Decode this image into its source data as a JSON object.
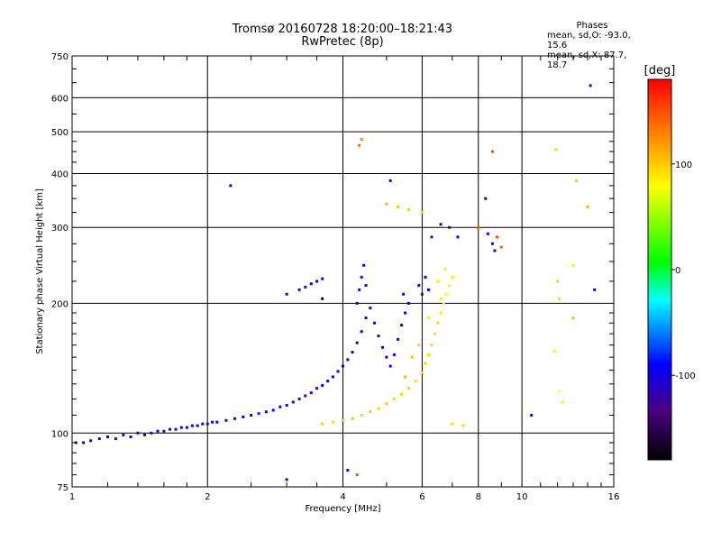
{
  "chart_data": {
    "type": "scatter",
    "title": "Tromsø 20160728 18:20:00–18:21:43",
    "subtitle": "RwPretec (8p)",
    "xlabel": "Frequency [MHz]",
    "ylabel": "Stationary phase Virtual Height [km]",
    "x_scale": "log",
    "y_scale": "log",
    "xlim": [
      1,
      16
    ],
    "ylim": [
      75,
      750
    ],
    "x_ticks": [
      1,
      2,
      4,
      6,
      8,
      10,
      16
    ],
    "y_ticks": [
      75,
      100,
      200,
      300,
      400,
      500,
      600,
      750
    ],
    "grid": true,
    "legend": {
      "title": "Phases",
      "lines": [
        "mean, sd,O: -93.0, 15.6",
        "mean, sd,X: 87.7, 18.7"
      ],
      "placement": "top-right"
    },
    "colorbar": {
      "label": "[deg]",
      "range": [
        -180,
        180
      ],
      "ticks": [
        100,
        0,
        -100
      ]
    },
    "series": [
      {
        "points": [
          [
            1.02,
            95,
            -115
          ],
          [
            1.06,
            95,
            -110
          ],
          [
            1.1,
            96,
            -118
          ],
          [
            1.15,
            97,
            -112
          ],
          [
            1.2,
            98,
            -108
          ],
          [
            1.25,
            97,
            -115
          ],
          [
            1.3,
            99,
            -110
          ],
          [
            1.35,
            98,
            -120
          ],
          [
            1.4,
            100,
            -112
          ],
          [
            1.45,
            99,
            -105
          ],
          [
            1.5,
            100,
            -115
          ],
          [
            1.55,
            101,
            -108
          ],
          [
            1.6,
            101,
            -118
          ],
          [
            1.65,
            102,
            -110
          ],
          [
            1.7,
            102,
            -100
          ],
          [
            1.75,
            103,
            -112
          ],
          [
            1.8,
            103,
            -105
          ],
          [
            1.85,
            104,
            -118
          ],
          [
            1.9,
            104,
            -108
          ],
          [
            1.95,
            105,
            -115
          ],
          [
            2.0,
            105,
            -110
          ],
          [
            2.05,
            106,
            -100
          ],
          [
            2.1,
            106,
            -95
          ],
          [
            2.2,
            107,
            -110
          ],
          [
            2.3,
            108,
            -105
          ],
          [
            2.4,
            109,
            -90
          ],
          [
            2.5,
            110,
            -100
          ],
          [
            2.6,
            111,
            -80
          ],
          [
            2.7,
            112,
            -95
          ],
          [
            2.8,
            113,
            -88
          ],
          [
            2.9,
            115,
            -105
          ],
          [
            3.0,
            116,
            -120
          ],
          [
            3.1,
            118,
            -115
          ],
          [
            3.2,
            120,
            -125
          ],
          [
            3.3,
            122,
            -130
          ],
          [
            3.4,
            124,
            -120
          ],
          [
            3.5,
            127,
            -115
          ],
          [
            3.6,
            129,
            -110
          ],
          [
            3.7,
            132,
            -105
          ],
          [
            3.8,
            135,
            -110
          ],
          [
            3.9,
            139,
            -105
          ],
          [
            4.0,
            143,
            -100
          ],
          [
            4.1,
            148,
            -110
          ],
          [
            4.2,
            154,
            -105
          ],
          [
            4.3,
            162,
            -112
          ],
          [
            4.4,
            172,
            -108
          ],
          [
            4.5,
            185,
            -115
          ],
          [
            4.3,
            200,
            -110
          ],
          [
            4.35,
            215,
            -105
          ],
          [
            4.4,
            230,
            -112
          ],
          [
            4.45,
            245,
            -108
          ],
          [
            4.5,
            220,
            -100
          ],
          [
            4.6,
            195,
            -110
          ],
          [
            4.7,
            180,
            -105
          ],
          [
            4.8,
            168,
            -115
          ],
          [
            4.9,
            158,
            -108
          ],
          [
            5.0,
            150,
            -110
          ],
          [
            5.1,
            143,
            -105
          ],
          [
            5.2,
            152,
            -112
          ],
          [
            5.3,
            165,
            -108
          ],
          [
            5.4,
            178,
            -110
          ],
          [
            5.5,
            190,
            -100
          ],
          [
            5.6,
            200,
            -105
          ],
          [
            5.45,
            210,
            -110
          ],
          [
            3.0,
            210,
            -120
          ],
          [
            3.2,
            215,
            -115
          ],
          [
            3.4,
            222,
            -110
          ],
          [
            3.6,
            228,
            -105
          ],
          [
            3.3,
            218,
            -118
          ],
          [
            3.5,
            225,
            -110
          ],
          [
            2.25,
            375,
            -110
          ],
          [
            5.1,
            385,
            -115
          ],
          [
            6.0,
            210,
            -110
          ],
          [
            6.1,
            230,
            -105
          ],
          [
            6.3,
            285,
            -115
          ],
          [
            6.6,
            305,
            -108
          ],
          [
            6.9,
            300,
            -112
          ],
          [
            7.2,
            285,
            -105
          ],
          [
            8.3,
            350,
            -110
          ],
          [
            8.7,
            265,
            -115
          ],
          [
            8.4,
            290,
            -108
          ],
          [
            8.6,
            275,
            -110
          ],
          [
            6.2,
            215,
            -100
          ],
          [
            5.9,
            220,
            -105
          ],
          [
            3.6,
            205,
            -170
          ],
          [
            4.1,
            82,
            -130
          ],
          [
            3.0,
            78,
            -135
          ],
          [
            10.5,
            110,
            -110
          ],
          [
            14.5,
            215,
            -120
          ],
          [
            14.2,
            640,
            -130
          ]
        ]
      },
      {
        "points": [
          [
            3.6,
            105,
            100
          ],
          [
            3.8,
            106,
            95
          ],
          [
            4.0,
            107,
            100
          ],
          [
            4.2,
            108,
            105
          ],
          [
            4.4,
            110,
            98
          ],
          [
            4.6,
            112,
            102
          ],
          [
            4.8,
            114,
            96
          ],
          [
            5.0,
            117,
            100
          ],
          [
            5.2,
            120,
            94
          ],
          [
            5.4,
            123,
            98
          ],
          [
            5.6,
            127,
            100
          ],
          [
            5.8,
            132,
            92
          ],
          [
            6.0,
            138,
            96
          ],
          [
            6.1,
            145,
            100
          ],
          [
            6.2,
            152,
            94
          ],
          [
            6.3,
            160,
            98
          ],
          [
            6.4,
            170,
            92
          ],
          [
            6.5,
            180,
            95
          ],
          [
            6.6,
            190,
            88
          ],
          [
            6.7,
            200,
            82
          ],
          [
            6.8,
            210,
            78
          ],
          [
            6.9,
            220,
            72
          ],
          [
            7.0,
            230,
            68
          ],
          [
            6.75,
            240,
            75
          ],
          [
            6.5,
            225,
            70
          ],
          [
            6.6,
            205,
            65
          ],
          [
            6.2,
            185,
            85
          ],
          [
            5.9,
            160,
            100
          ],
          [
            5.7,
            150,
            105
          ],
          [
            5.5,
            135,
            110
          ],
          [
            5.0,
            340,
            110
          ],
          [
            5.3,
            335,
            105
          ],
          [
            5.6,
            330,
            100
          ],
          [
            6.0,
            325,
            95
          ],
          [
            4.4,
            480,
            130
          ],
          [
            4.35,
            465,
            140
          ],
          [
            8.8,
            285,
            150
          ],
          [
            9.0,
            270,
            145
          ],
          [
            8.0,
            298,
            135
          ],
          [
            7.0,
            105,
            90
          ],
          [
            7.4,
            104,
            95
          ],
          [
            11.9,
            455,
            55
          ],
          [
            13.2,
            385,
            100
          ],
          [
            13.0,
            245,
            70
          ],
          [
            12.0,
            225,
            55
          ],
          [
            12.1,
            205,
            60
          ],
          [
            13.0,
            185,
            45
          ],
          [
            11.8,
            155,
            85
          ],
          [
            12.1,
            125,
            80
          ],
          [
            12.3,
            118,
            85
          ],
          [
            14.0,
            335,
            110
          ],
          [
            4.3,
            80,
            150
          ],
          [
            8.6,
            450,
            150
          ]
        ]
      }
    ]
  }
}
